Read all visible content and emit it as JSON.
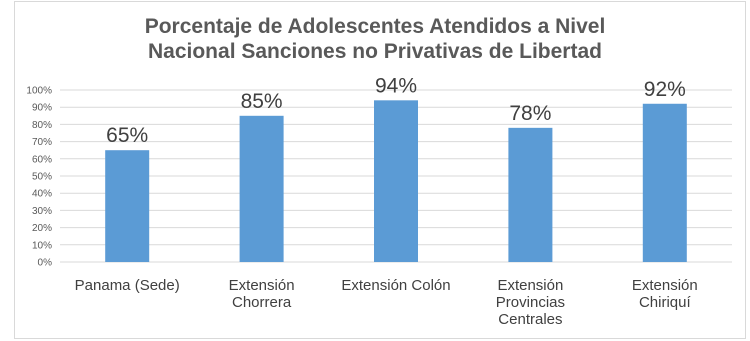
{
  "chart_data": {
    "type": "bar",
    "title_lines": [
      "Porcentaje de Adolescentes Atendidos a Nivel",
      "Nacional Sanciones no Privativas de Libertad"
    ],
    "categories": [
      [
        "Panama (Sede)"
      ],
      [
        "Extensión",
        "Chorrera"
      ],
      [
        "Extensión Colón"
      ],
      [
        "Extensión",
        "Provincias",
        "Centrales"
      ],
      [
        "Extensión",
        "Chiriquí"
      ]
    ],
    "values": [
      65,
      85,
      94,
      78,
      92
    ],
    "data_labels": [
      "65%",
      "85%",
      "94%",
      "78%",
      "92%"
    ],
    "y_ticks": [
      "0%",
      "10%",
      "20%",
      "30%",
      "40%",
      "50%",
      "60%",
      "70%",
      "80%",
      "90%",
      "100%"
    ],
    "ylim": [
      0,
      100
    ],
    "grid": true,
    "bar_color": "#5b9bd5",
    "grid_color": "#d9d9d9"
  }
}
